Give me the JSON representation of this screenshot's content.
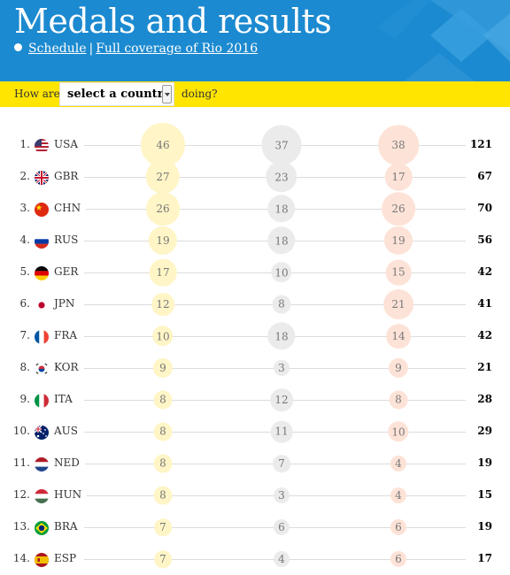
{
  "header": {
    "title": "Medals and results",
    "schedule_link": "Schedule",
    "separator": "|",
    "coverage_link": "Full coverage of Rio 2016"
  },
  "selector": {
    "prefix": "How are",
    "selected": "select a country",
    "suffix": "doing?"
  },
  "colors": {
    "header_blue": "#1c8ad0",
    "selector_yellow": "#ffe500",
    "gold": "#fff5c6",
    "silver": "#ebebeb",
    "bronze": "#fde3d7"
  },
  "rows": [
    {
      "rank": "1.",
      "code": "USA",
      "flag": "us-flag-icon",
      "gold": 46,
      "silver": 37,
      "bronze": 38,
      "total": 121
    },
    {
      "rank": "2.",
      "code": "GBR",
      "flag": "gb-flag-icon",
      "gold": 27,
      "silver": 23,
      "bronze": 17,
      "total": 67
    },
    {
      "rank": "3.",
      "code": "CHN",
      "flag": "cn-flag-icon",
      "gold": 26,
      "silver": 18,
      "bronze": 26,
      "total": 70
    },
    {
      "rank": "4.",
      "code": "RUS",
      "flag": "ru-flag-icon",
      "gold": 19,
      "silver": 18,
      "bronze": 19,
      "total": 56
    },
    {
      "rank": "5.",
      "code": "GER",
      "flag": "de-flag-icon",
      "gold": 17,
      "silver": 10,
      "bronze": 15,
      "total": 42
    },
    {
      "rank": "6.",
      "code": "JPN",
      "flag": "jp-flag-icon",
      "gold": 12,
      "silver": 8,
      "bronze": 21,
      "total": 41
    },
    {
      "rank": "7.",
      "code": "FRA",
      "flag": "fr-flag-icon",
      "gold": 10,
      "silver": 18,
      "bronze": 14,
      "total": 42
    },
    {
      "rank": "8.",
      "code": "KOR",
      "flag": "kr-flag-icon",
      "gold": 9,
      "silver": 3,
      "bronze": 9,
      "total": 21
    },
    {
      "rank": "9.",
      "code": "ITA",
      "flag": "it-flag-icon",
      "gold": 8,
      "silver": 12,
      "bronze": 8,
      "total": 28
    },
    {
      "rank": "10.",
      "code": "AUS",
      "flag": "au-flag-icon",
      "gold": 8,
      "silver": 11,
      "bronze": 10,
      "total": 29
    },
    {
      "rank": "11.",
      "code": "NED",
      "flag": "nl-flag-icon",
      "gold": 8,
      "silver": 7,
      "bronze": 4,
      "total": 19
    },
    {
      "rank": "12.",
      "code": "HUN",
      "flag": "hu-flag-icon",
      "gold": 8,
      "silver": 3,
      "bronze": 4,
      "total": 15
    },
    {
      "rank": "13.",
      "code": "BRA",
      "flag": "br-flag-icon",
      "gold": 7,
      "silver": 6,
      "bronze": 6,
      "total": 19
    },
    {
      "rank": "14.",
      "code": "ESP",
      "flag": "es-flag-icon",
      "gold": 7,
      "silver": 4,
      "bronze": 6,
      "total": 17
    }
  ]
}
